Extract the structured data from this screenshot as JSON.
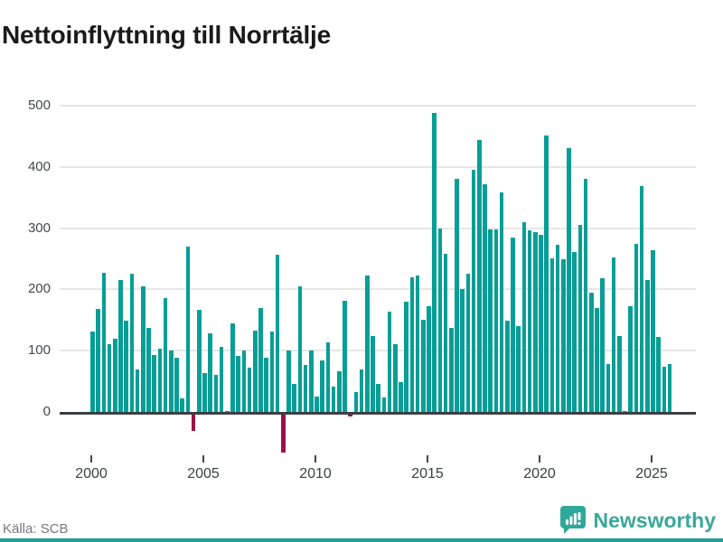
{
  "title": "Nettoinflyttning till Norrtälje",
  "source": "Källa: SCB",
  "brand": {
    "name": "Newsworthy",
    "logo_icon": "newsworthy-badge-icon"
  },
  "colors": {
    "bar_positive": "#069e96",
    "bar_negative": "#9b1048",
    "gridline": "#e6e6e6",
    "axis": "#3b3f43",
    "title_text": "#1a1a1a",
    "tick_text": "#43474b",
    "source_text": "#75797f",
    "brand_teal": "#2ea89b"
  },
  "chart_data": {
    "type": "bar",
    "title": "Nettoinflyttning till Norrtälje",
    "xlabel": "",
    "ylabel": "",
    "frequency": "quarterly",
    "ylim": [
      -80,
      520
    ],
    "grid": "horizontal",
    "y_ticks": [
      0,
      100,
      200,
      300,
      400,
      500
    ],
    "x_ticks": [
      "2000",
      "2005",
      "2010",
      "2015",
      "2020",
      "2025"
    ],
    "series_by_year": [
      {
        "year": 2000,
        "q": [
          131,
          168,
          227,
          111
        ]
      },
      {
        "year": 2001,
        "q": [
          119,
          216,
          149,
          225
        ]
      },
      {
        "year": 2002,
        "q": [
          70,
          205,
          137,
          93
        ]
      },
      {
        "year": 2003,
        "q": [
          103,
          186,
          101,
          88
        ]
      },
      {
        "year": 2004,
        "q": [
          22,
          270,
          -31,
          166
        ]
      },
      {
        "year": 2005,
        "q": [
          63,
          128,
          61,
          106
        ]
      },
      {
        "year": 2006,
        "q": [
          2,
          144,
          91,
          100
        ]
      },
      {
        "year": 2007,
        "q": [
          73,
          133,
          170,
          88
        ]
      },
      {
        "year": 2008,
        "q": [
          131,
          257,
          -67,
          100
        ]
      },
      {
        "year": 2009,
        "q": [
          45,
          205,
          76,
          101
        ]
      },
      {
        "year": 2010,
        "q": [
          25,
          84,
          113,
          42
        ]
      },
      {
        "year": 2011,
        "q": [
          67,
          182,
          -8,
          32
        ]
      },
      {
        "year": 2012,
        "q": [
          69,
          222,
          124,
          45
        ]
      },
      {
        "year": 2013,
        "q": [
          23,
          163,
          110,
          49
        ]
      },
      {
        "year": 2014,
        "q": [
          180,
          220,
          222,
          151
        ]
      },
      {
        "year": 2015,
        "q": [
          173,
          488,
          300,
          258
        ]
      },
      {
        "year": 2016,
        "q": [
          137,
          380,
          200,
          226
        ]
      },
      {
        "year": 2017,
        "q": [
          396,
          444,
          371,
          298
        ]
      },
      {
        "year": 2018,
        "q": [
          298,
          359,
          149,
          285
        ]
      },
      {
        "year": 2019,
        "q": [
          140,
          309,
          297,
          293
        ]
      },
      {
        "year": 2020,
        "q": [
          289,
          452,
          251,
          273
        ]
      },
      {
        "year": 2021,
        "q": [
          249,
          430,
          261,
          305
        ]
      },
      {
        "year": 2022,
        "q": [
          380,
          194,
          170,
          218
        ]
      },
      {
        "year": 2023,
        "q": [
          78,
          252,
          124,
          2
        ]
      },
      {
        "year": 2024,
        "q": [
          172,
          274,
          369,
          215
        ]
      },
      {
        "year": 2025,
        "q": [
          264,
          123,
          74,
          78
        ]
      }
    ]
  }
}
